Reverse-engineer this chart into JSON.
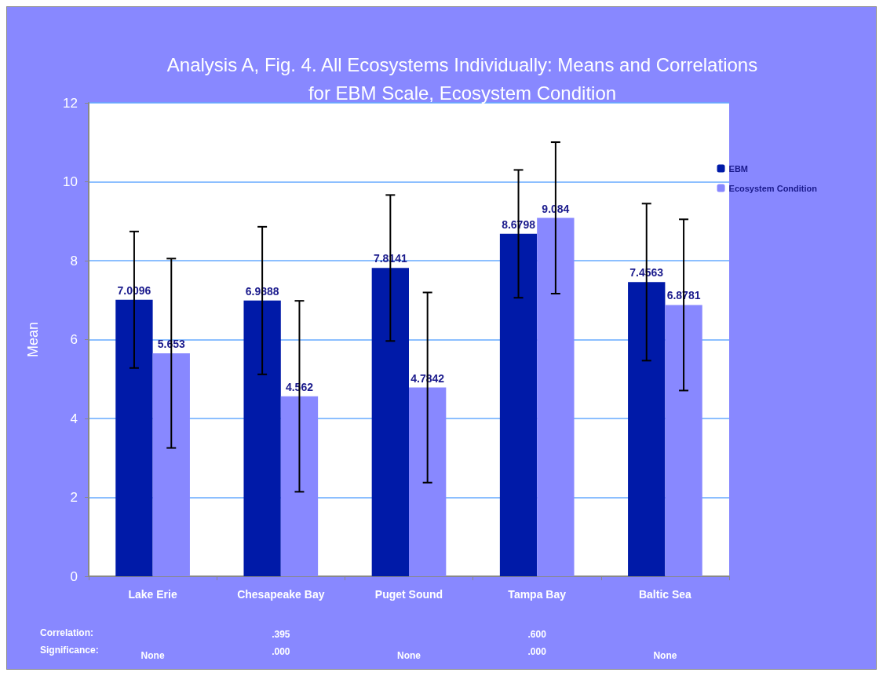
{
  "chart_data": {
    "type": "bar",
    "title": "Analysis A, Fig. 4. All Ecosystems Individually: Means and Correlations\nfor EBM Scale, Ecosystem Condition",
    "ylabel": "Mean",
    "categories": [
      "Lake Erie",
      "Chesapeake Bay",
      "Puget Sound",
      "Tampa Bay",
      "Baltic Sea"
    ],
    "series": [
      {
        "name": "EBM",
        "color": "#001aa8",
        "values": [
          7.0096,
          6.9888,
          7.8141,
          8.6798,
          7.4563
        ],
        "errors": [
          1.73,
          1.87,
          1.85,
          1.62,
          1.99
        ]
      },
      {
        "name": "Ecosystem Condition",
        "color": "#8888ff",
        "values": [
          5.653,
          4.562,
          4.7842,
          9.084,
          6.8781
        ],
        "errors": [
          2.4,
          2.42,
          2.41,
          1.92,
          2.17
        ]
      }
    ],
    "ylim": [
      0,
      12
    ],
    "yticks": [
      0,
      2,
      4,
      6,
      8,
      10,
      12
    ],
    "grid": "y",
    "legend": "top right",
    "data_labels": true,
    "annotations": [
      "Correlation:",
      "Significance:",
      "None",
      ".395",
      ".000",
      "None",
      ".600",
      ".000",
      "None"
    ]
  }
}
